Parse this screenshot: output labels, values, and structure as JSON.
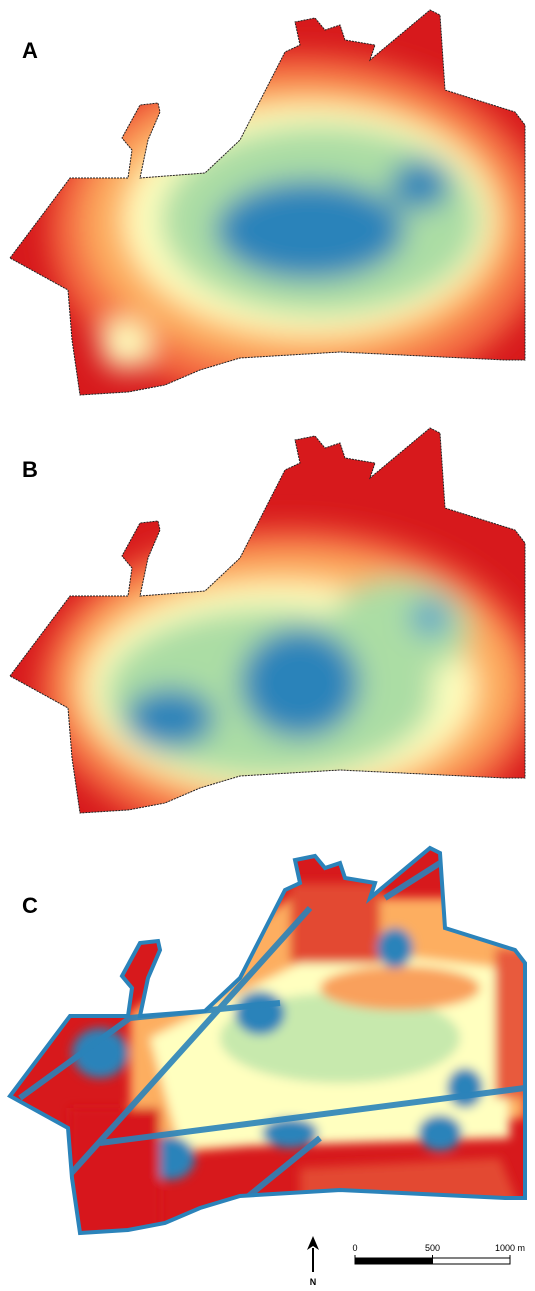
{
  "panels": [
    {
      "label": "A"
    },
    {
      "label": "B"
    },
    {
      "label": "C"
    }
  ],
  "north_arrow": {
    "label": "N"
  },
  "scale_bar": {
    "ticks": [
      0,
      500,
      {
        "value": 1000,
        "label": "1000 m"
      }
    ]
  }
}
